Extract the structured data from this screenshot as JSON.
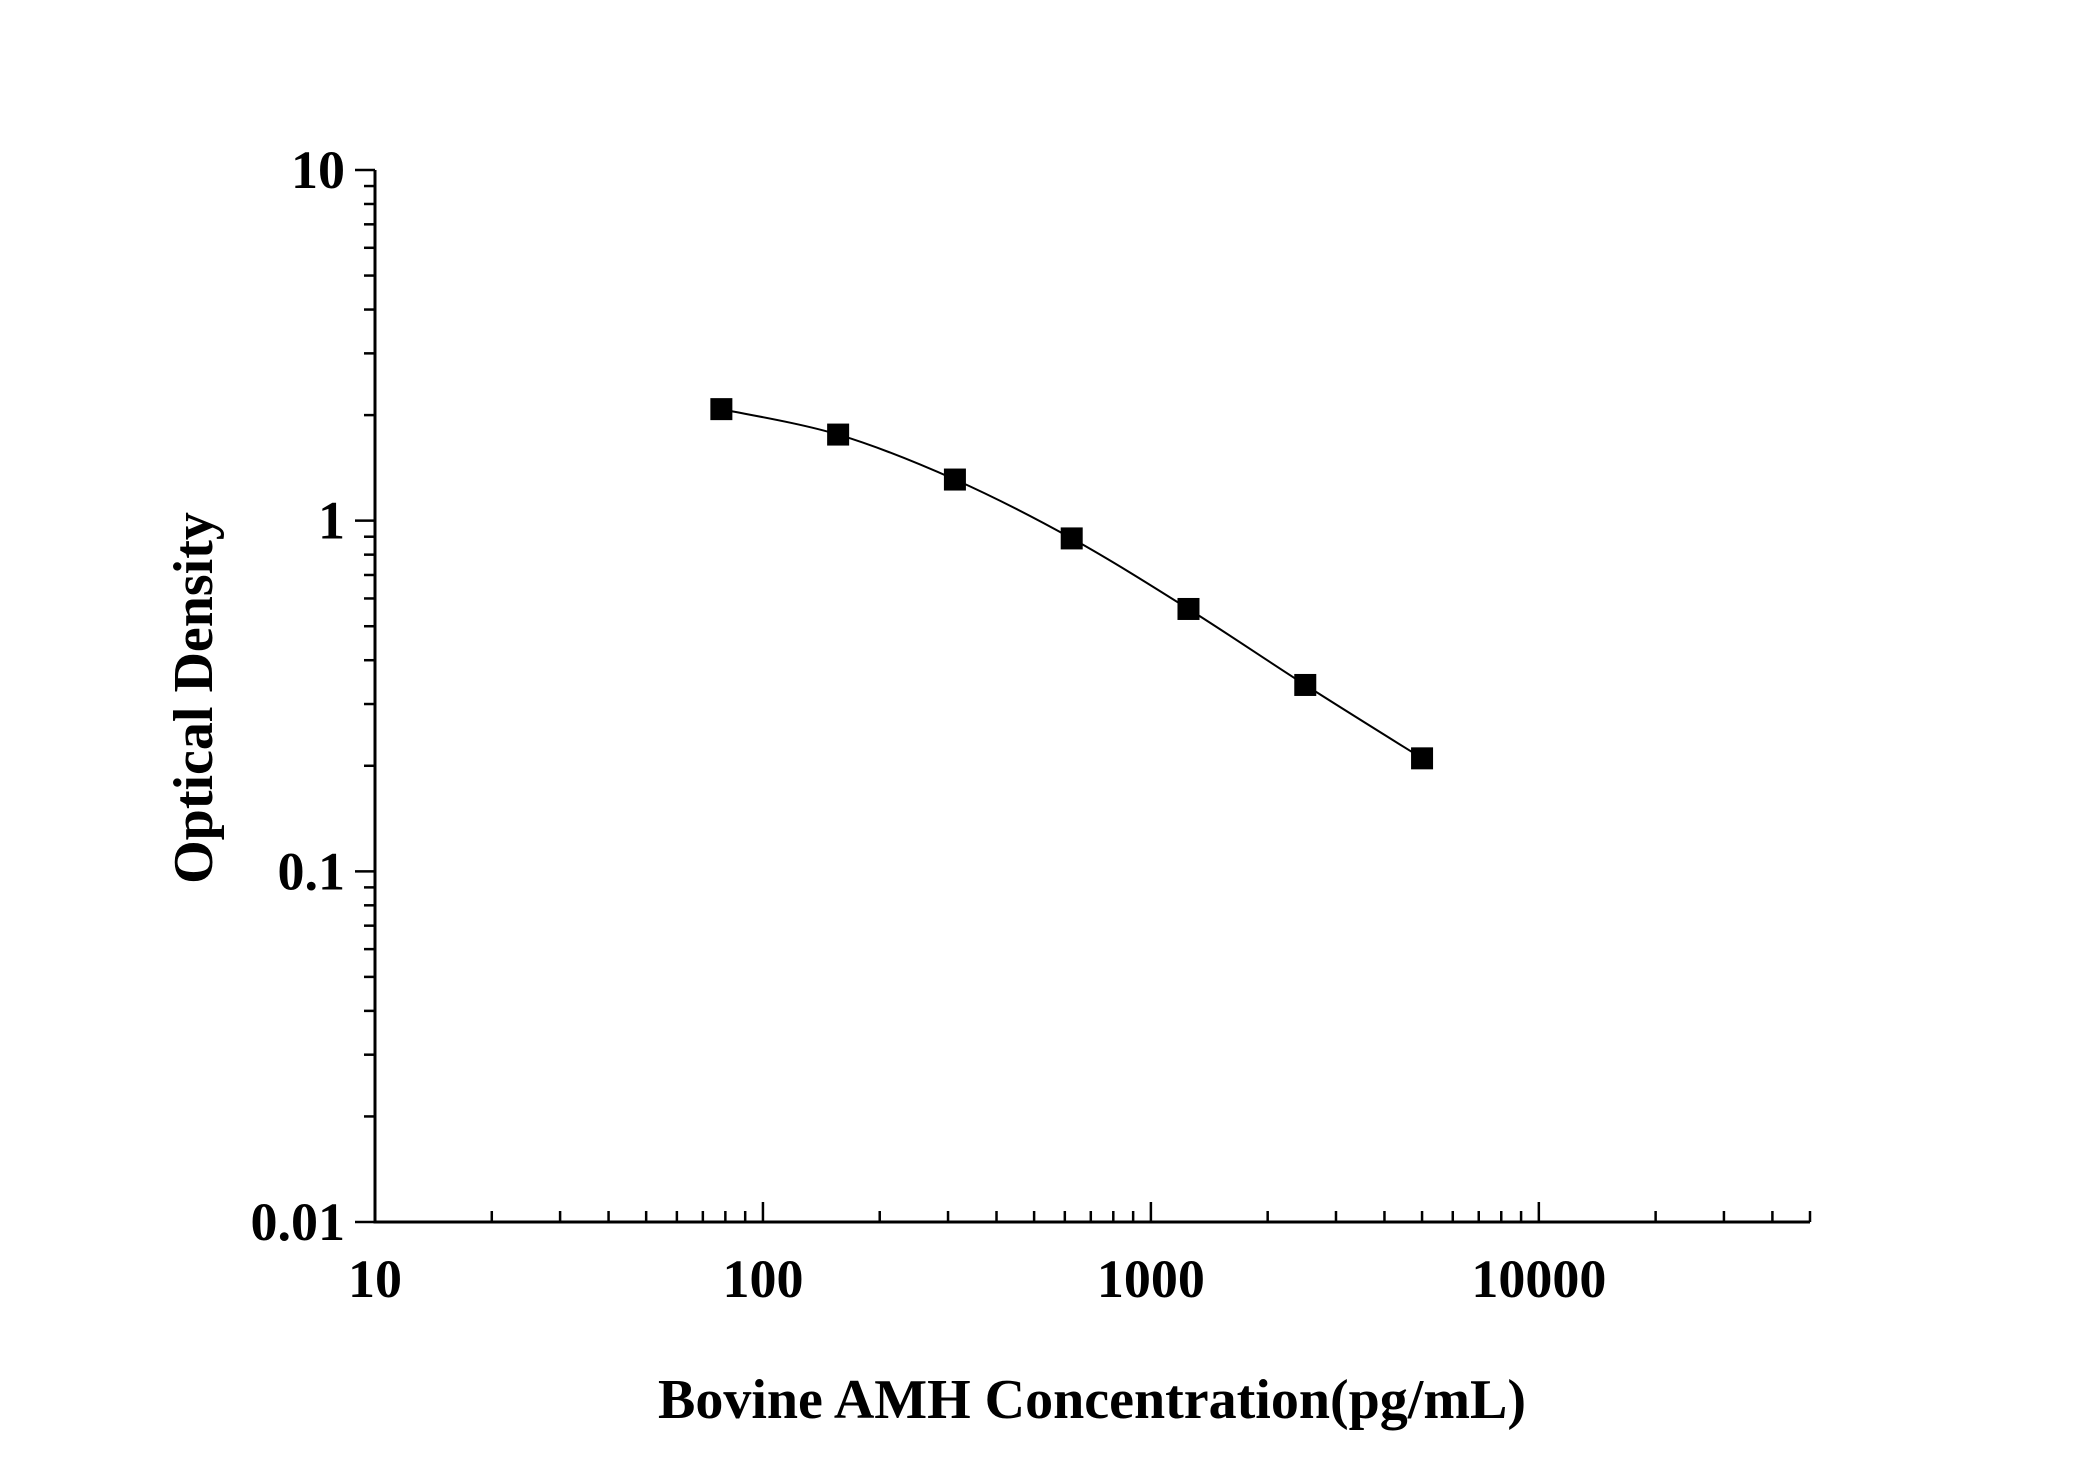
{
  "chart_data": {
    "type": "scatter",
    "title": "",
    "xlabel": "Bovine AMH Concentration(pg/mL)",
    "ylabel": "Optical Density",
    "xscale": "log",
    "yscale": "log",
    "xlim": [
      10,
      50000
    ],
    "ylim": [
      0.01,
      10
    ],
    "x_ticks": [
      10,
      100,
      1000,
      10000
    ],
    "x_tick_labels": [
      "10",
      "100",
      "1000",
      "10000"
    ],
    "y_ticks": [
      0.01,
      0.1,
      1,
      10
    ],
    "y_tick_labels": [
      "0.01",
      "0.1",
      "1",
      "10"
    ],
    "grid": false,
    "legend": "none",
    "series": [
      {
        "marker": "square",
        "line": "connected",
        "color": "#000000",
        "x": [
          78.13,
          156.25,
          312.5,
          625,
          1250,
          2500,
          5000
        ],
        "y": [
          2.08,
          1.76,
          1.31,
          0.89,
          0.56,
          0.34,
          0.21
        ]
      }
    ]
  }
}
